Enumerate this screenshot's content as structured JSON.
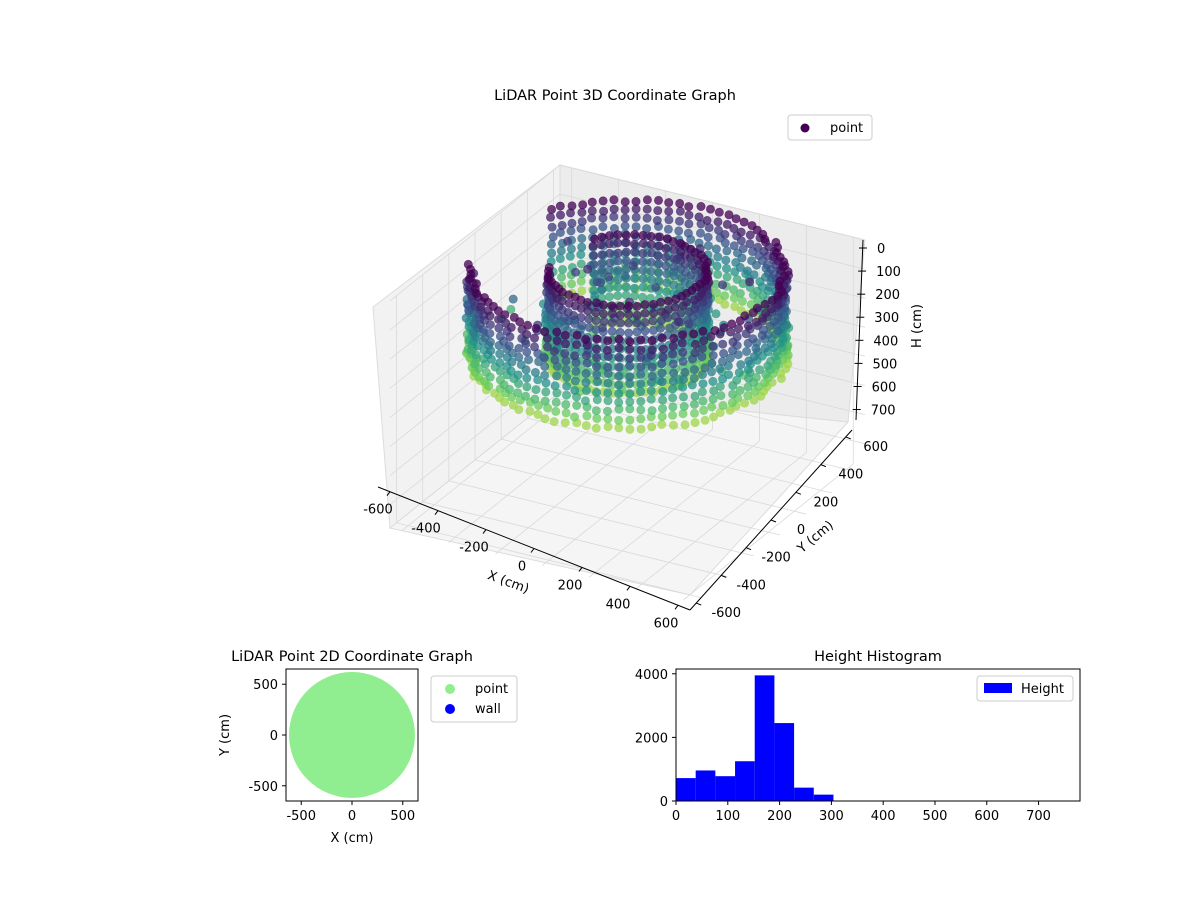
{
  "chart_data": [
    {
      "type": "scatter",
      "projection": "3d",
      "title": "LiDAR Point 3D Coordinate Graph",
      "xlabel": "X (cm)",
      "ylabel": "Y (cm)",
      "zlabel": "H (cm)",
      "xlim": [
        -650,
        650
      ],
      "ylim": [
        -650,
        650
      ],
      "zlim": [
        0,
        780
      ],
      "z_inverted": true,
      "xticks": [
        -600,
        -400,
        -200,
        0,
        200,
        400,
        600
      ],
      "yticks": [
        -600,
        -400,
        -200,
        0,
        200,
        400,
        600
      ],
      "zticks": [
        0,
        100,
        200,
        300,
        400,
        500,
        600,
        700
      ],
      "colormap": "viridis",
      "grid": true,
      "legend": {
        "position": "top-right",
        "entries": [
          {
            "label": "point",
            "color": "#440154"
          }
        ]
      },
      "structure": {
        "outer_wall_radius_cm": 590,
        "inner_wall_radius_cm": 300,
        "wall_height_range_cm": [
          0,
          300
        ],
        "opening_angle_deg": [
          150,
          200
        ]
      }
    },
    {
      "type": "scatter",
      "title": "LiDAR Point 2D Coordinate Graph",
      "xlabel": "X (cm)",
      "ylabel": "Y (cm)",
      "xlim": [
        -650,
        650
      ],
      "ylim": [
        -650,
        650
      ],
      "xticks": [
        -500,
        0,
        500
      ],
      "yticks": [
        -500,
        0,
        500
      ],
      "disk_radius_cm": 620,
      "legend": {
        "position": "outside-right",
        "entries": [
          {
            "label": "point",
            "color": "#90ee90"
          },
          {
            "label": "wall",
            "color": "#0000ff"
          }
        ]
      }
    },
    {
      "type": "bar",
      "subtype": "histogram",
      "title": "Height Histogram",
      "xlim": [
        0,
        780
      ],
      "ylim": [
        0,
        4150
      ],
      "xticks": [
        0,
        100,
        200,
        300,
        400,
        500,
        600,
        700
      ],
      "yticks": [
        0,
        2000,
        4000
      ],
      "bin_width": 38,
      "bin_starts": [
        0,
        38,
        76,
        114,
        152,
        190,
        228,
        266
      ],
      "values": [
        720,
        960,
        780,
        1250,
        3950,
        2450,
        420,
        200
      ],
      "color": "#0000ff",
      "legend": {
        "position": "top-right",
        "entries": [
          {
            "label": "Height",
            "color": "#0000ff"
          }
        ]
      }
    }
  ]
}
